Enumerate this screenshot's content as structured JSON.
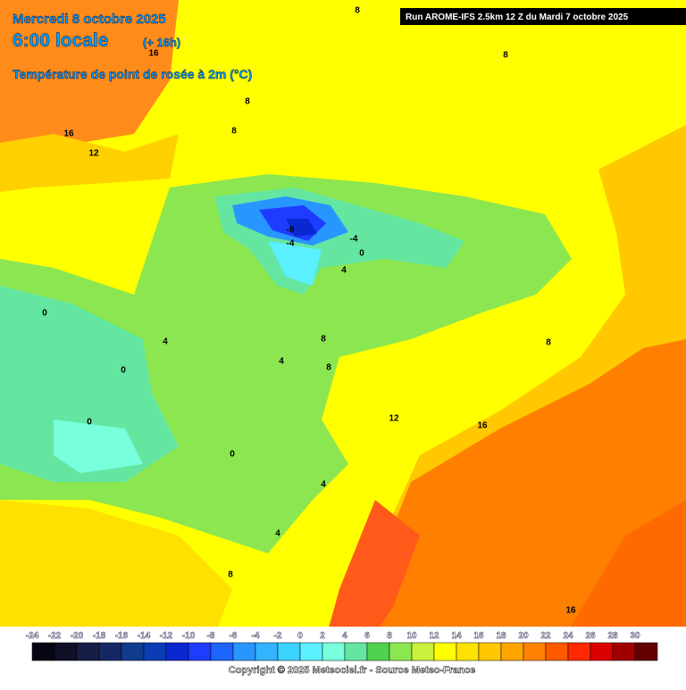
{
  "header": {
    "date": "Mercredi 8 octobre 2025",
    "time": "6:00 locale",
    "lead": "(+ 16h)",
    "subtitle": "Température de point de rosée à 2m (°C)",
    "run": "Run AROME-IFS 2.5km 12 Z du Mardi 7 octobre 2025"
  },
  "contour_labels": [
    "16",
    "16",
    "12",
    "8",
    "8",
    "8",
    "8",
    "-8",
    "-4",
    "-4",
    "0",
    "4",
    "0",
    "4",
    "0",
    "4",
    "8",
    "8",
    "8",
    "0",
    "12",
    "16",
    "0",
    "4",
    "4",
    "8",
    "16"
  ],
  "colorbar": {
    "ticks": [
      -24,
      -22,
      -20,
      -18,
      -16,
      -14,
      -12,
      -10,
      -8,
      -6,
      -4,
      -2,
      0,
      2,
      4,
      6,
      8,
      10,
      12,
      14,
      16,
      18,
      20,
      22,
      24,
      26,
      28,
      30
    ],
    "colors": [
      "#050514",
      "#0f0f28",
      "#141e46",
      "#142864",
      "#103c8c",
      "#0a3cb4",
      "#0a28d2",
      "#1e3cff",
      "#1e64ff",
      "#2896ff",
      "#32b4ff",
      "#3cd2ff",
      "#5af0ff",
      "#78ffdc",
      "#64e6a0",
      "#50d250",
      "#8ce650",
      "#c8f03c",
      "#ffff00",
      "#ffe100",
      "#ffc800",
      "#ffa500",
      "#ff8200",
      "#ff5a00",
      "#ff2800",
      "#dc0000",
      "#a00000",
      "#640000"
    ]
  },
  "copyright": "Copyright © 2025 Meteociel.fr - Source Meteo-France"
}
